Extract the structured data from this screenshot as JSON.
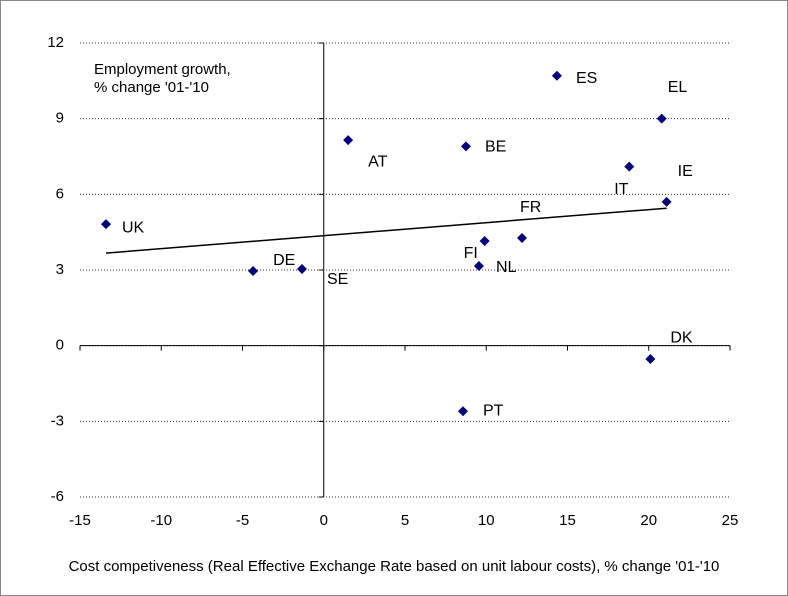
{
  "chart_data": {
    "type": "scatter",
    "y_label": [
      "Employment growth,",
      "% change '01-'10"
    ],
    "x_label": "Cost competiveness (Real Effective Exchange Rate based on unit labour costs), % change '01-'10",
    "series": [
      {
        "color": "#000080",
        "labels": [
          "UK",
          "DE",
          "SE",
          "AT",
          "BE",
          "ES",
          "EL",
          "IT",
          "IE",
          "FR",
          "FI",
          "NL",
          "DK",
          "PT"
        ],
        "x": [
          -13.4,
          -4.35,
          -1.34,
          1.5,
          8.75,
          14.35,
          20.8,
          18.8,
          21.1,
          12.2,
          9.9,
          9.55,
          20.1,
          8.57
        ],
        "values": [
          4.82,
          2.96,
          3.04,
          8.15,
          7.9,
          10.7,
          9.0,
          7.1,
          5.7,
          4.27,
          4.15,
          3.16,
          -0.53,
          -2.6
        ]
      }
    ],
    "trendline": {
      "x": [
        -13.4,
        21.1
      ],
      "values": [
        3.67,
        5.45
      ],
      "color": "#000000"
    },
    "xlim": [
      -15,
      25
    ],
    "xticks": [
      -15,
      -10,
      -5,
      0,
      5,
      10,
      15,
      20,
      25
    ],
    "ylim": [
      -6,
      12
    ],
    "yticks": [
      -6,
      -3,
      0,
      3,
      6,
      9,
      12
    ],
    "grid": true
  }
}
